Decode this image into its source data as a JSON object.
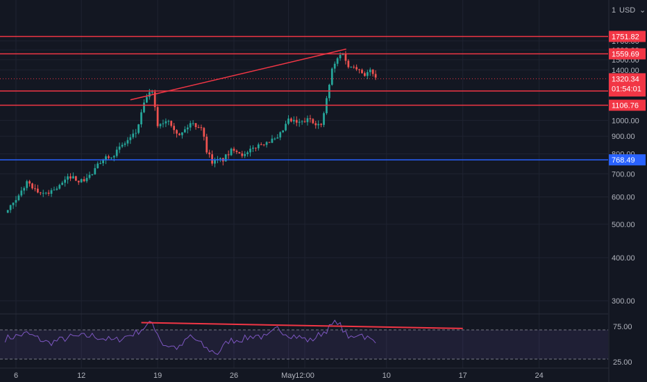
{
  "chart_data": {
    "type": "candlestick",
    "currency_label": "USD",
    "price_axis": {
      "ticks": [
        300,
        400,
        500,
        600,
        700,
        800,
        900,
        1000,
        1400,
        1500,
        1600,
        1700
      ],
      "labels": [
        "300.00",
        "400.00",
        "500.00",
        "600.00",
        "700.00",
        "800.00",
        "900.00",
        "1000.00",
        "1400.00",
        "1500.00",
        "1600.00",
        "1700.00"
      ],
      "top_partial_label": "18",
      "ylim": [
        240,
        1830
      ],
      "scale": "log"
    },
    "time_axis": {
      "labels": [
        "6",
        "12",
        "19",
        "26",
        "May",
        "12:00",
        "10",
        "17",
        "24"
      ],
      "label_positions_day": [
        0,
        6,
        13,
        20,
        25,
        26.5,
        34,
        41,
        48
      ]
    },
    "horizontal_levels": [
      {
        "label": "1751.82",
        "value": 1751.82,
        "color": "#f23645"
      },
      {
        "label": "1559.69",
        "value": 1559.69,
        "color": "#f23645"
      },
      {
        "label": "1217.35",
        "value": 1217.35,
        "color": "#f23645"
      },
      {
        "label": "1106.76",
        "value": 1106.76,
        "color": "#f23645"
      },
      {
        "label": "768.49",
        "value": 768.49,
        "color": "#2962ff"
      }
    ],
    "current_price": {
      "label": "1320.34",
      "countdown": "01:54:01",
      "value": 1320.34,
      "color": "#f23645"
    },
    "trendline": {
      "from_day": 10.5,
      "from_value": 1147,
      "to_day": 30.3,
      "to_value": 1610,
      "color": "#f23645"
    },
    "colors": {
      "up": "#26a69a",
      "down": "#ef5350",
      "grid": "#1f2331"
    },
    "price_path": [
      [
        -1,
        540
      ],
      [
        0,
        580
      ],
      [
        1,
        665
      ],
      [
        2,
        610
      ],
      [
        3,
        620
      ],
      [
        4,
        645
      ],
      [
        5,
        690
      ],
      [
        6,
        665
      ],
      [
        7,
        700
      ],
      [
        8,
        780
      ],
      [
        9,
        800
      ],
      [
        10,
        860
      ],
      [
        11,
        920
      ],
      [
        12,
        1180
      ],
      [
        12.5,
        1200
      ],
      [
        13,
        970
      ],
      [
        14,
        1010
      ],
      [
        15,
        900
      ],
      [
        16,
        980
      ],
      [
        17,
        960
      ],
      [
        17.5,
        820
      ],
      [
        18,
        760
      ],
      [
        19,
        770
      ],
      [
        20,
        830
      ],
      [
        21,
        790
      ],
      [
        22,
        840
      ],
      [
        23,
        870
      ],
      [
        24,
        880
      ],
      [
        25,
        1000
      ],
      [
        26,
        980
      ],
      [
        27,
        1010
      ],
      [
        28,
        960
      ],
      [
        28.5,
        1150
      ],
      [
        29,
        1400
      ],
      [
        29.5,
        1510
      ],
      [
        30,
        1580
      ],
      [
        30.5,
        1420
      ],
      [
        31,
        1450
      ],
      [
        32,
        1360
      ],
      [
        32.5,
        1390
      ],
      [
        33,
        1320.34
      ]
    ],
    "rsi": {
      "upper_label": "75.00",
      "lower_label": "25.00",
      "upper": 70,
      "lower": 30,
      "min": 20,
      "max": 85,
      "color": "#7e57c2",
      "path": [
        [
          -1,
          58
        ],
        [
          1,
          65
        ],
        [
          3,
          52
        ],
        [
          5,
          60
        ],
        [
          7,
          62
        ],
        [
          9,
          55
        ],
        [
          11,
          66
        ],
        [
          12.5,
          80
        ],
        [
          13.5,
          50
        ],
        [
          15,
          45
        ],
        [
          16,
          62
        ],
        [
          17.5,
          44
        ],
        [
          18.5,
          38
        ],
        [
          19.5,
          55
        ],
        [
          21,
          58
        ],
        [
          22,
          63
        ],
        [
          23,
          59
        ],
        [
          24,
          72
        ],
        [
          25,
          64
        ],
        [
          26,
          60
        ],
        [
          27,
          55
        ],
        [
          28.5,
          70
        ],
        [
          29.5,
          82
        ],
        [
          30.5,
          58
        ],
        [
          31.5,
          66
        ],
        [
          33,
          52
        ]
      ],
      "trendline": {
        "from_day": 11.5,
        "from_value": 80,
        "to_day": 41,
        "to_value": 72
      }
    }
  }
}
